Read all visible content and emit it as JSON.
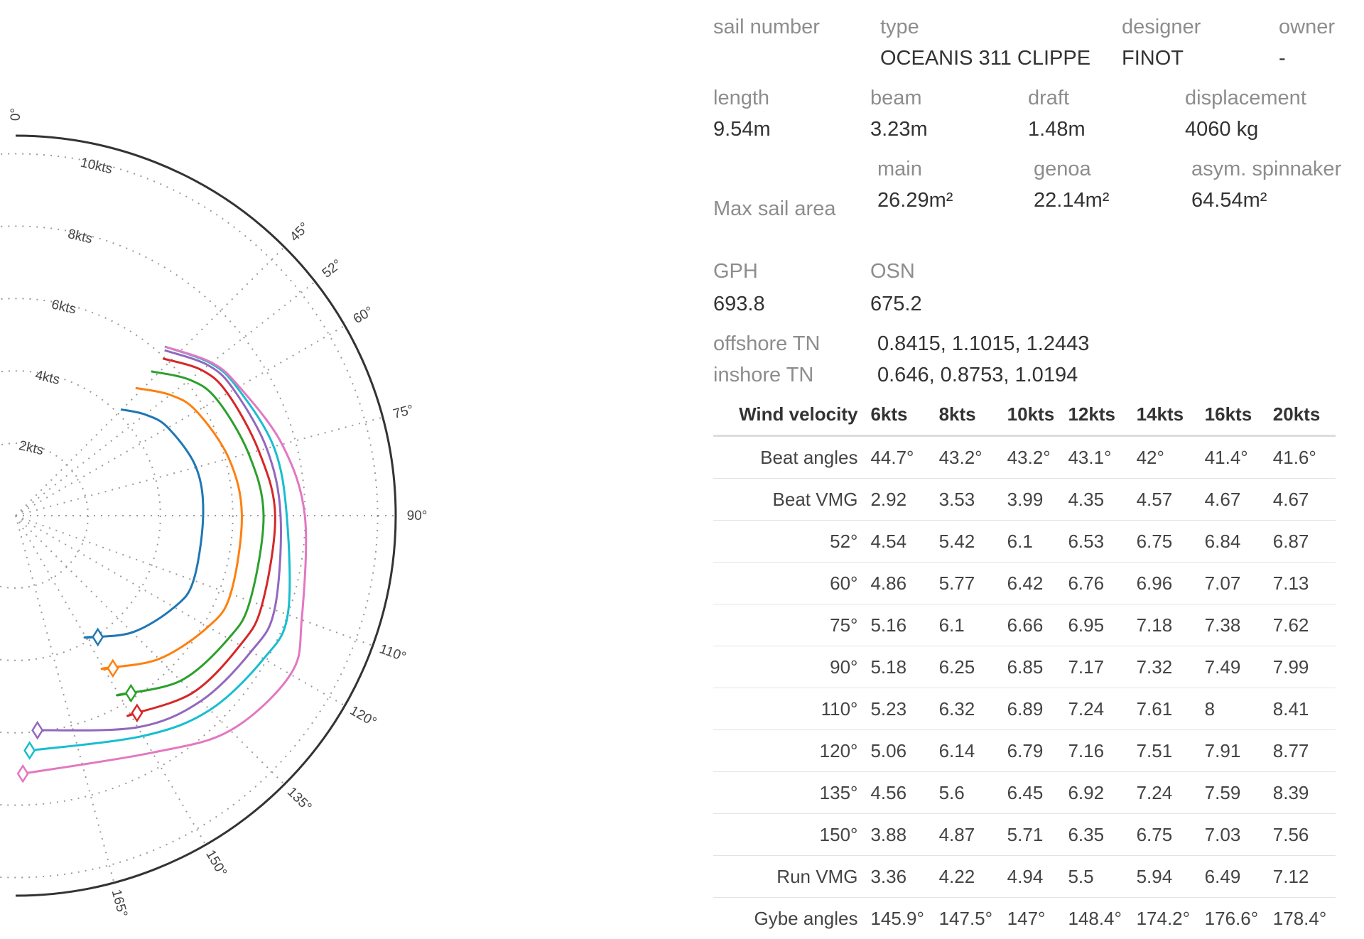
{
  "boat": {
    "sail_number_label": "sail number",
    "sail_number": "",
    "type_label": "type",
    "type": "OCEANIS 311 CLIPPE",
    "designer_label": "designer",
    "designer": "FINOT",
    "owner_label": "owner",
    "owner": "-",
    "length_label": "length",
    "length": "9.54m",
    "beam_label": "beam",
    "beam": "3.23m",
    "draft_label": "draft",
    "draft": "1.48m",
    "displacement_label": "displacement",
    "displacement": "4060 kg",
    "max_sail_area_label": "Max sail area",
    "main_label": "main",
    "main": "26.29m²",
    "genoa_label": "genoa",
    "genoa": "22.14m²",
    "spinnaker_label": "asym. spinnaker",
    "spinnaker": "64.54m²",
    "gph_label": "GPH",
    "gph": "693.8",
    "osn_label": "OSN",
    "osn": "675.2",
    "offshore_tn_label": "offshore TN",
    "offshore_tn": "0.8415, 1.1015, 1.2443",
    "inshore_tn_label": "inshore TN",
    "inshore_tn": "0.646, 0.8753, 1.0194"
  },
  "table": {
    "header": [
      "Wind velocity",
      "6kts",
      "8kts",
      "10kts",
      "12kts",
      "14kts",
      "16kts",
      "20kts"
    ],
    "rows": [
      [
        "Beat angles",
        "44.7°",
        "43.2°",
        "43.2°",
        "43.1°",
        "42°",
        "41.4°",
        "41.6°"
      ],
      [
        "Beat VMG",
        "2.92",
        "3.53",
        "3.99",
        "4.35",
        "4.57",
        "4.67",
        "4.67"
      ],
      [
        "52°",
        "4.54",
        "5.42",
        "6.1",
        "6.53",
        "6.75",
        "6.84",
        "6.87"
      ],
      [
        "60°",
        "4.86",
        "5.77",
        "6.42",
        "6.76",
        "6.96",
        "7.07",
        "7.13"
      ],
      [
        "75°",
        "5.16",
        "6.1",
        "6.66",
        "6.95",
        "7.18",
        "7.38",
        "7.62"
      ],
      [
        "90°",
        "5.18",
        "6.25",
        "6.85",
        "7.17",
        "7.32",
        "7.49",
        "7.99"
      ],
      [
        "110°",
        "5.23",
        "6.32",
        "6.89",
        "7.24",
        "7.61",
        "8",
        "8.41"
      ],
      [
        "120°",
        "5.06",
        "6.14",
        "6.79",
        "7.16",
        "7.51",
        "7.91",
        "8.77"
      ],
      [
        "135°",
        "4.56",
        "5.6",
        "6.45",
        "6.92",
        "7.24",
        "7.59",
        "8.39"
      ],
      [
        "150°",
        "3.88",
        "4.87",
        "5.71",
        "6.35",
        "6.75",
        "7.03",
        "7.56"
      ],
      [
        "Run VMG",
        "3.36",
        "4.22",
        "4.94",
        "5.5",
        "5.94",
        "6.49",
        "7.12"
      ],
      [
        "Gybe angles",
        "145.9°",
        "147.5°",
        "147°",
        "148.4°",
        "174.2°",
        "176.6°",
        "178.4°"
      ]
    ]
  },
  "chart_data": {
    "type": "line",
    "subtype": "polar",
    "radial_ticks": [
      "2kts",
      "4kts",
      "6kts",
      "8kts",
      "10kts"
    ],
    "radial_max": 10.5,
    "angle_ticks": [
      "0°",
      "45°",
      "52°",
      "60°",
      "75°",
      "90°",
      "110°",
      "120°",
      "135°",
      "150°",
      "165°"
    ],
    "angle_tick_values": [
      0,
      45,
      52,
      60,
      75,
      90,
      110,
      120,
      135,
      150,
      165
    ],
    "grid": true,
    "legend": "none",
    "series": [
      {
        "color": "#1f77b4",
        "angles": [
          44.7,
          52,
          60,
          75,
          90,
          110,
          120,
          135,
          150,
          145.9
        ],
        "values": [
          4.13,
          4.54,
          4.86,
          5.16,
          5.18,
          5.23,
          5.06,
          4.56,
          3.88,
          4.05
        ],
        "marker_angle": 145.9,
        "marker_value": 4.05
      },
      {
        "color": "#ff7f0e",
        "angles": [
          43.2,
          52,
          60,
          75,
          90,
          110,
          120,
          135,
          150,
          147.5
        ],
        "values": [
          4.84,
          5.42,
          5.77,
          6.1,
          6.25,
          6.32,
          6.14,
          5.6,
          4.87,
          5.0
        ],
        "marker_angle": 147.5,
        "marker_value": 5.0
      },
      {
        "color": "#2ca02c",
        "angles": [
          43.2,
          52,
          60,
          75,
          90,
          110,
          120,
          135,
          150,
          147
        ],
        "values": [
          5.47,
          6.1,
          6.42,
          6.66,
          6.85,
          6.89,
          6.79,
          6.45,
          5.71,
          5.85
        ],
        "marker_angle": 147,
        "marker_value": 5.85
      },
      {
        "color": "#d62728",
        "angles": [
          43.1,
          52,
          60,
          75,
          90,
          110,
          120,
          135,
          150,
          148.4
        ],
        "values": [
          5.95,
          6.53,
          6.76,
          6.95,
          7.17,
          7.24,
          7.16,
          6.92,
          6.35,
          6.4
        ],
        "marker_angle": 148.4,
        "marker_value": 6.4
      },
      {
        "color": "#9467bd",
        "angles": [
          42,
          52,
          60,
          75,
          90,
          110,
          120,
          135,
          150,
          174.2
        ],
        "values": [
          6.15,
          6.75,
          6.96,
          7.18,
          7.32,
          7.61,
          7.51,
          7.24,
          6.75,
          5.96
        ],
        "marker_angle": 174.2,
        "marker_value": 5.96
      },
      {
        "color": "#17becf",
        "angles": [
          41.4,
          52,
          60,
          75,
          90,
          110,
          120,
          135,
          150,
          176.6
        ],
        "values": [
          6.23,
          6.84,
          7.07,
          7.38,
          7.49,
          8.0,
          7.91,
          7.59,
          7.03,
          6.5
        ],
        "marker_angle": 176.6,
        "marker_value": 6.5
      },
      {
        "color": "#e377c2",
        "angles": [
          41.6,
          52,
          60,
          75,
          90,
          110,
          120,
          135,
          150,
          178.4
        ],
        "values": [
          6.24,
          6.87,
          7.13,
          7.62,
          7.99,
          8.41,
          8.77,
          8.39,
          7.56,
          7.13
        ],
        "marker_angle": 178.4,
        "marker_value": 7.13
      }
    ]
  }
}
